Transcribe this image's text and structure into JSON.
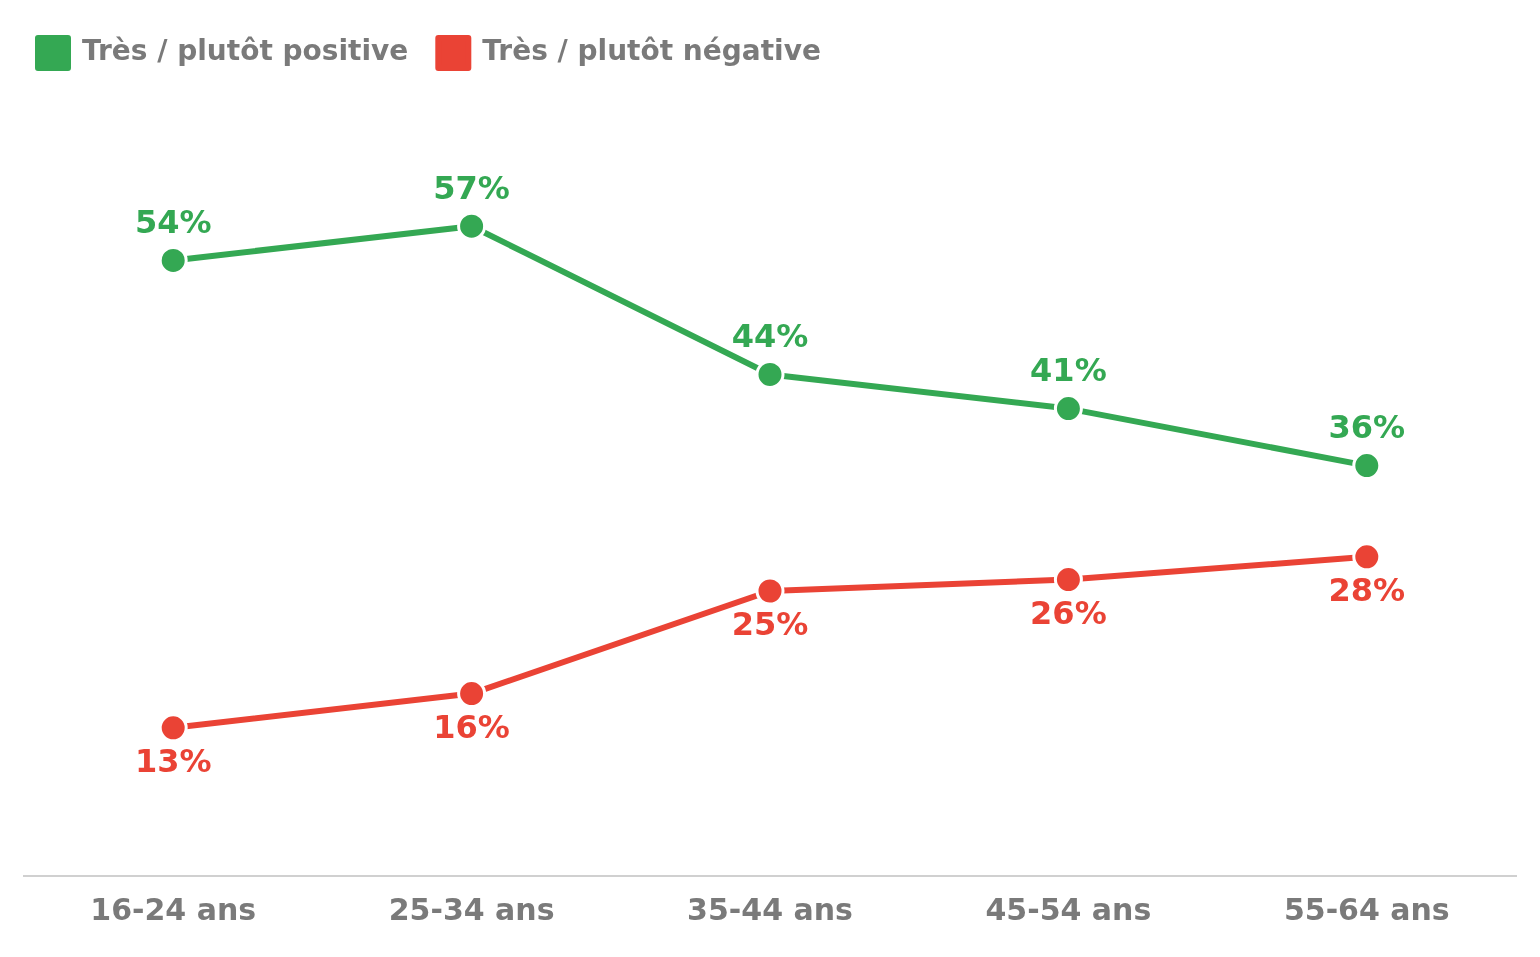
{
  "chart_data": {
    "type": "line",
    "categories": [
      "16-24 ans",
      "25-34 ans",
      "35-44 ans",
      "45-54 ans",
      "55-64 ans"
    ],
    "series": [
      {
        "name": "Très / plutôt positive",
        "color": "#34a853",
        "values": [
          54,
          57,
          44,
          41,
          36
        ],
        "value_labels": [
          "54%",
          "57%",
          "44%",
          "41%",
          "36%"
        ]
      },
      {
        "name": "Très / plutôt négative",
        "color": "#ea4335",
        "values": [
          13,
          16,
          25,
          26,
          28
        ],
        "value_labels": [
          "13%",
          "16%",
          "25%",
          "26%",
          "28%"
        ]
      }
    ],
    "legend": "top left",
    "grid": false,
    "marker": "circle",
    "line_style": "solid"
  }
}
